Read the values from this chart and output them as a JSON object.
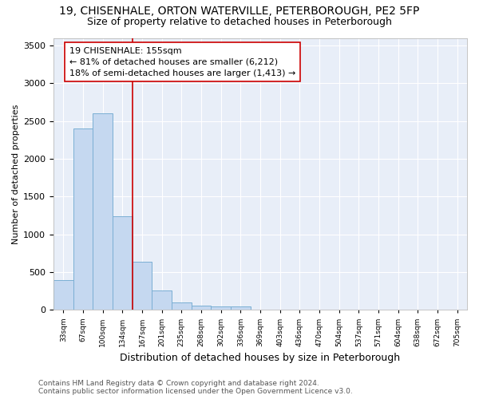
{
  "title": "19, CHISENHALE, ORTON WATERVILLE, PETERBOROUGH, PE2 5FP",
  "subtitle": "Size of property relative to detached houses in Peterborough",
  "xlabel": "Distribution of detached houses by size in Peterborough",
  "ylabel": "Number of detached properties",
  "bar_values": [
    390,
    2400,
    2600,
    1240,
    640,
    255,
    100,
    55,
    50,
    40,
    0,
    0,
    0,
    0,
    0,
    0,
    0,
    0,
    0,
    0
  ],
  "categories": [
    "33sqm",
    "67sqm",
    "100sqm",
    "134sqm",
    "167sqm",
    "201sqm",
    "235sqm",
    "268sqm",
    "302sqm",
    "336sqm",
    "369sqm",
    "403sqm",
    "436sqm",
    "470sqm",
    "504sqm",
    "537sqm",
    "571sqm",
    "604sqm",
    "638sqm",
    "672sqm",
    "705sqm"
  ],
  "bar_color": "#c5d8f0",
  "bar_edge_color": "#7bafd4",
  "vline_x": 3.5,
  "vline_color": "#cc0000",
  "annotation_line1": "19 CHISENHALE: 155sqm",
  "annotation_line2": "← 81% of detached houses are smaller (6,212)",
  "annotation_line3": "18% of semi-detached houses are larger (1,413) →",
  "annotation_box_color": "#cc0000",
  "ylim": [
    0,
    3600
  ],
  "yticks": [
    0,
    500,
    1000,
    1500,
    2000,
    2500,
    3000,
    3500
  ],
  "footer": "Contains HM Land Registry data © Crown copyright and database right 2024.\nContains public sector information licensed under the Open Government Licence v3.0.",
  "bg_color": "#e8eef8",
  "grid_color": "#ffffff",
  "title_fontsize": 10,
  "subtitle_fontsize": 9,
  "annotation_fontsize": 8,
  "footer_fontsize": 6.5,
  "ylabel_fontsize": 8,
  "xlabel_fontsize": 9
}
